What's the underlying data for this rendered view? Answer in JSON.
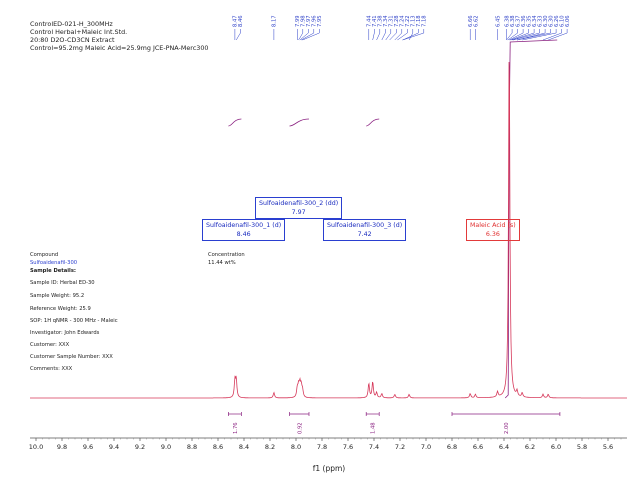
{
  "header": {
    "line1": "ControlED-021-H_300MHz",
    "line2": "Control Herbal+Maleic Int.Std.",
    "line3": "20:80 D2O-CD3CN Extract",
    "line4": "Control=95.2mg Maleic Acid=25.9mg JCE-PNA-Merc300"
  },
  "info": {
    "compound_label": "Compound",
    "compound_value": "Sulfoaidenafil-300",
    "concentration_label": "Concentration",
    "concentration_value": "11.44 wt%",
    "sample_details": "Sample Details:",
    "sample_id": "Sample ID: Herbal ED-30",
    "sample_weight": "Sample Weight: 95.2",
    "reference_weight": "Reference Weight: 25.9",
    "sop": "SOP: 1H qNMR - 300 MHz - Maleic",
    "investigator": "Investigator: John Edwards",
    "customer": "Customer: XXX",
    "customer_sample": "Customer Sample Number: XXX",
    "comments": "Comments: XXX"
  },
  "assignments": [
    {
      "name": "Sulfoaidenafil-300_2 (dd)",
      "shift": "7.97"
    },
    {
      "name": "Sulfoaidenafil-300_1 (d)",
      "shift": "8.46"
    },
    {
      "name": "Sulfoaidenafil-300_3 (d)",
      "shift": "7.42"
    },
    {
      "name": "Maleic Acid (s)",
      "shift": "6.36"
    }
  ],
  "colors": {
    "spectrum": "#d6385a",
    "labels": "#2c3fc8",
    "integral": "#8a2080",
    "maleic": "#e03030"
  },
  "chart_data": {
    "type": "line",
    "title": "ControlED-021-H_300MHz",
    "xlabel": "f1 (ppm)",
    "ylabel": "",
    "xlim": [
      10.0,
      5.5
    ],
    "x_ticks": [
      "10.0",
      "9.8",
      "9.6",
      "9.4",
      "9.2",
      "9.0",
      "8.8",
      "8.6",
      "8.4",
      "8.2",
      "8.0",
      "7.8",
      "7.6",
      "7.4",
      "7.2",
      "7.0",
      "6.8",
      "6.6",
      "6.4",
      "6.2",
      "6.0",
      "5.8",
      "5.6"
    ],
    "peak_labels": [
      "8.47",
      "8.46",
      "8.17",
      "7.99",
      "7.98",
      "7.97",
      "7.96",
      "7.95",
      "7.44",
      "7.41",
      "7.38",
      "7.34",
      "7.31",
      "7.28",
      "7.24",
      "7.22",
      "7.13",
      "7.18",
      "7.18",
      "6.66",
      "6.62",
      "6.45",
      "6.38",
      "6.38",
      "6.37",
      "6.36",
      "6.35",
      "6.34",
      "6.33",
      "6.30",
      "6.30",
      "6.26",
      "6.10",
      "6.06"
    ],
    "peaks": [
      {
        "ppm": 8.47,
        "height": 0.045
      },
      {
        "ppm": 8.46,
        "height": 0.05
      },
      {
        "ppm": 8.17,
        "height": 0.015
      },
      {
        "ppm": 7.99,
        "height": 0.025
      },
      {
        "ppm": 7.98,
        "height": 0.03
      },
      {
        "ppm": 7.97,
        "height": 0.035
      },
      {
        "ppm": 7.96,
        "height": 0.03
      },
      {
        "ppm": 7.95,
        "height": 0.02
      },
      {
        "ppm": 7.44,
        "height": 0.04
      },
      {
        "ppm": 7.41,
        "height": 0.045
      },
      {
        "ppm": 7.38,
        "height": 0.015
      },
      {
        "ppm": 7.34,
        "height": 0.012
      },
      {
        "ppm": 7.24,
        "height": 0.01
      },
      {
        "ppm": 7.13,
        "height": 0.01
      },
      {
        "ppm": 6.66,
        "height": 0.012
      },
      {
        "ppm": 6.62,
        "height": 0.01
      },
      {
        "ppm": 6.45,
        "height": 0.015
      },
      {
        "ppm": 6.36,
        "height": 1.0
      },
      {
        "ppm": 6.3,
        "height": 0.015
      },
      {
        "ppm": 6.26,
        "height": 0.012
      },
      {
        "ppm": 6.1,
        "height": 0.01
      },
      {
        "ppm": 6.06,
        "height": 0.01
      }
    ],
    "integrals": [
      {
        "from": 8.52,
        "to": 8.42,
        "value": "1.76"
      },
      {
        "from": 8.05,
        "to": 7.9,
        "value": "0.92"
      },
      {
        "from": 7.46,
        "to": 7.36,
        "value": "1.48"
      },
      {
        "from": 6.8,
        "to": 5.97,
        "value": "2.00"
      }
    ]
  }
}
